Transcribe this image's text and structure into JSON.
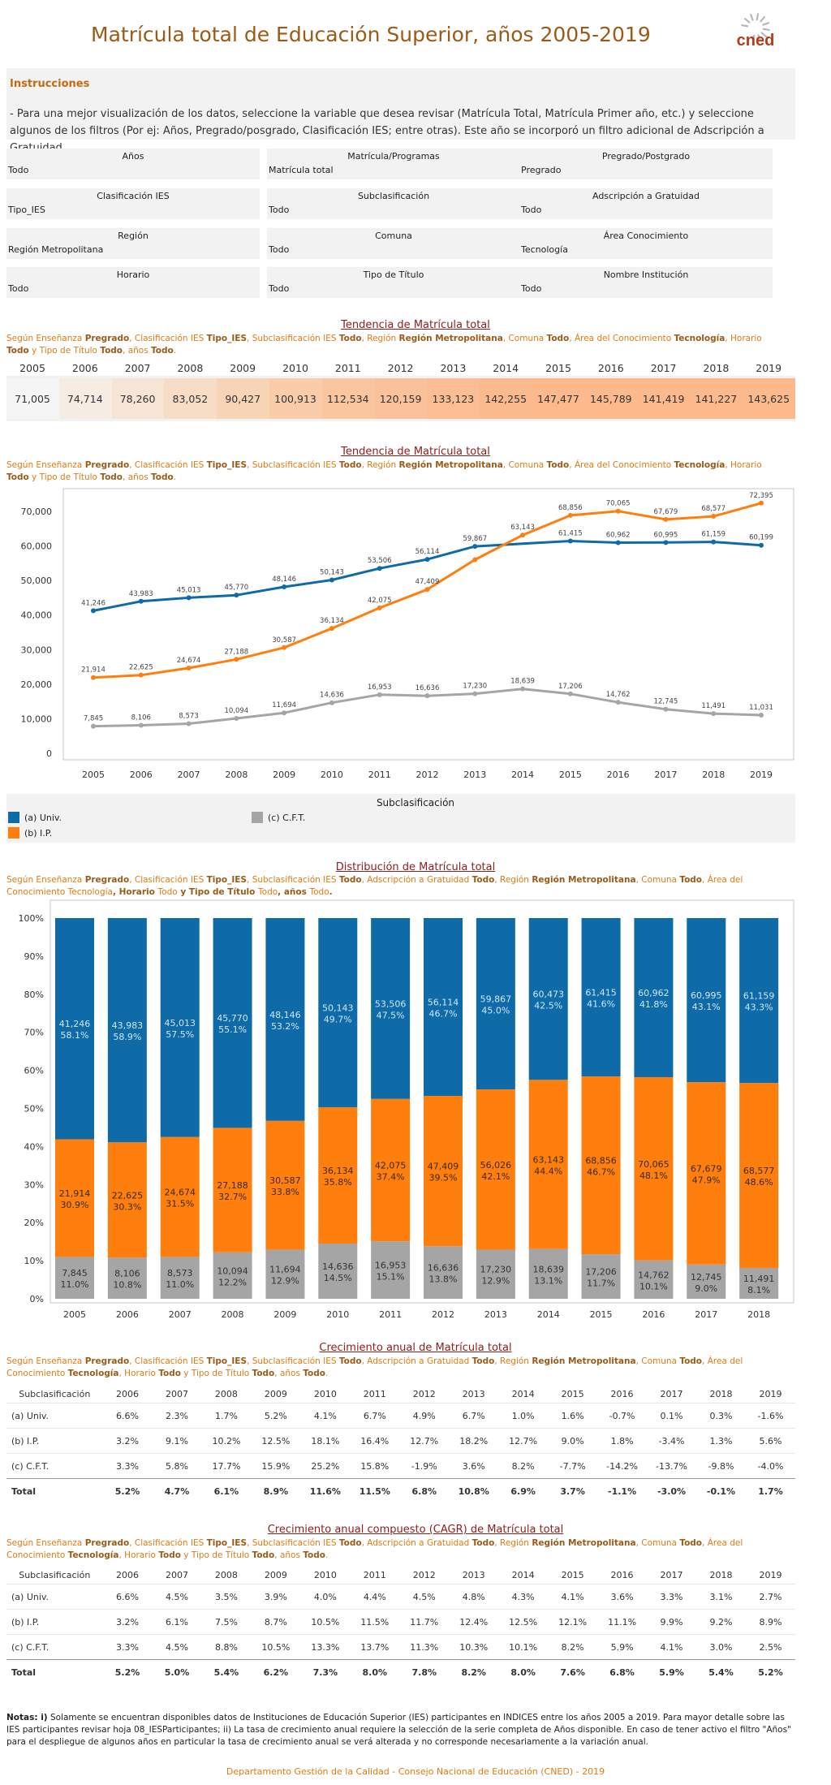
{
  "title": "Matrícula total de Educación Superior, años 2005-2019",
  "logo_text": "cned",
  "colors": {
    "accent": "#9c5a17",
    "orange": "#e07b12",
    "univ": "#0f6ba8",
    "ip": "#ff7f0e",
    "cft": "#a5a5a5"
  },
  "instructions": {
    "heading": "Instrucciones",
    "text": "- Para una mejor visualización de los datos, seleccione la variable que desea revisar (Matrícula Total, Matrícula Primer año, etc.) y seleccione algunos de los filtros (Por ej: Años, Pregrado/posgrado, Clasificación IES; entre otras). Este año se incorporó un filtro adicional de Adscripción a Gratuidad. .."
  },
  "filters": [
    {
      "label": "Años",
      "value": "Todo"
    },
    {
      "label": "Matrícula/Programas",
      "value": "Matrícula total"
    },
    {
      "label": "Pregrado/Postgrado",
      "value": "Pregrado"
    },
    {
      "label": "Clasificación IES",
      "value": "Tipo_IES"
    },
    {
      "label": "Subclasificación",
      "value": "Todo"
    },
    {
      "label": "Adscripción a Gratuidad",
      "value": "Todo"
    },
    {
      "label": "Región",
      "value": "Región Metropolitana"
    },
    {
      "label": "Comuna",
      "value": "Todo"
    },
    {
      "label": "Área Conocimiento",
      "value": "Tecnología"
    },
    {
      "label": "Horario",
      "value": "Todo"
    },
    {
      "label": "Tipo de Título",
      "value": "Todo"
    },
    {
      "label": "Nombre Institución",
      "value": "Todo"
    }
  ],
  "sections": {
    "trend_table": {
      "title_a": "Tendencia de ",
      "title_b": "Matrícula total",
      "sub": "Según Enseñanza |Pregrado|, Clasificación IES |Tipo_IES|, Subclasificación IES |Todo|, Región |Región Metropolitana|, Comuna |Todo|, Área del Conocimiento |Tecnología|, Horario |Todo|  y Tipo de Título |Todo|, años |Todo|."
    },
    "trend_line": {
      "title_a": "Tendencia de ",
      "title_b": "Matrícula total",
      "sub": "Según Enseñanza |Pregrado|, Clasificación IES |Tipo_IES|, Subclasificación IES |Todo|, Región |Región Metropolitana|, Comuna |Todo|, Área del Conocimiento |Tecnología|, Horario |Todo|  y Tipo de Título |Todo|, años |Todo|."
    },
    "distribution": {
      "title_a": "Distribución de ",
      "title_b": "Matrícula total",
      "sub": "Según Enseñanza |Pregrado|, Clasificación IES |Tipo_IES|, Subclasificación IES |Todo|, Adscripción a Gratuidad |Todo|, Región |Región Metropolitana|, Comuna |Todo|, Área del Conocimiento Tecnología|, Horario |Todo|  y Tipo de Título |Todo|, años |Todo|."
    },
    "growth": {
      "title_a": "Crecimiento anual de ",
      "title_b": "Matrícula total",
      "sub": "Según Enseñanza |Pregrado|, Clasificación IES |Tipo_IES|, Subclasificación IES |Todo|, Adscripción a Gratuidad |Todo|, Región |Región Metropolitana|, Comuna |Todo|, Área del Conocimiento |Tecnología|, Horario |Todo|  y Tipo de Título |Todo|, años |Todo|."
    },
    "cagr": {
      "title_a": "Crecimiento anual compuesto (CAGR) de ",
      "title_b": "Matrícula total",
      "sub": "Según Enseñanza |Pregrado|, Clasificación IES |Tipo_IES|, Subclasificación IES |Todo|, Adscripción a Gratuidad |Todo|, Región |Región Metropolitana|, Comuna |Todo|, Área del Conocimiento |Tecnología|, Horario |Todo|  y Tipo de Título |Todo|, años |Todo|."
    }
  },
  "legend": {
    "title": "Subclasificación",
    "items": [
      "(a) Univ.",
      "(b) I.P.",
      "(c) C.F.T."
    ]
  },
  "chart_data": [
    {
      "type": "table",
      "categories": [
        "2005",
        "2006",
        "2007",
        "2008",
        "2009",
        "2010",
        "2011",
        "2012",
        "2013",
        "2014",
        "2015",
        "2016",
        "2017",
        "2018",
        "2019"
      ],
      "values": [
        "71,005",
        "74,714",
        "78,260",
        "83,052",
        "90,427",
        "100,913",
        "112,534",
        "120,159",
        "133,123",
        "142,255",
        "147,477",
        "145,789",
        "141,419",
        "141,227",
        "143,625"
      ]
    },
    {
      "type": "line",
      "x": [
        "2005",
        "2006",
        "2007",
        "2008",
        "2009",
        "2010",
        "2011",
        "2012",
        "2013",
        "2014",
        "2015",
        "2016",
        "2017",
        "2018",
        "2019"
      ],
      "ylim": [
        0,
        75000
      ],
      "yticks": [
        0,
        10000,
        20000,
        30000,
        40000,
        50000,
        60000,
        70000
      ],
      "ytick_labels": [
        "0",
        "10,000",
        "20,000",
        "30,000",
        "40,000",
        "50,000",
        "60,000",
        "70,000"
      ],
      "series": [
        {
          "name": "(a) Univ.",
          "values": [
            41246,
            43983,
            45013,
            45770,
            48146,
            50143,
            53506,
            56114,
            59867,
            null,
            61415,
            60962,
            60995,
            61159,
            60199
          ],
          "labels": [
            "41,246",
            "43,983",
            "45,013",
            "45,770",
            "48,146",
            "50,143",
            "53,506",
            "56,114",
            "59,867",
            "",
            "61,415",
            "60,962",
            "60,995",
            "61,159",
            "60,199"
          ]
        },
        {
          "name": "(b) I.P.",
          "values": [
            21914,
            22625,
            24674,
            27188,
            30587,
            36134,
            42075,
            47409,
            56026,
            63143,
            68856,
            70065,
            67679,
            68577,
            72395
          ],
          "labels": [
            "21,914",
            "22,625",
            "24,674",
            "27,188",
            "30,587",
            "36,134",
            "42,075",
            "47,409",
            "",
            "63,143",
            "68,856",
            "70,065",
            "67,679",
            "68,577",
            "72,395"
          ]
        },
        {
          "name": "(c) C.F.T.",
          "values": [
            7845,
            8106,
            8573,
            10094,
            11694,
            14636,
            16953,
            16636,
            17230,
            18639,
            17206,
            14762,
            12745,
            11491,
            11031
          ],
          "labels": [
            "7,845",
            "8,106",
            "8,573",
            "10,094",
            "11,694",
            "14,636",
            "16,953",
            "16,636",
            "17,230",
            "18,639",
            "17,206",
            "14,762",
            "12,745",
            "11,491",
            "11,031"
          ]
        }
      ]
    },
    {
      "type": "bar",
      "stacked": true,
      "categories": [
        "2005",
        "2006",
        "2007",
        "2008",
        "2009",
        "2010",
        "2011",
        "2012",
        "2013",
        "2014",
        "2015",
        "2016",
        "2017",
        "2018"
      ],
      "ylim": [
        0,
        100
      ],
      "ytick_labels": [
        "0%",
        "10%",
        "20%",
        "30%",
        "40%",
        "50%",
        "60%",
        "70%",
        "80%",
        "90%",
        "100%"
      ],
      "series": [
        {
          "name": "(c) C.F.T.",
          "values": [
            11.0,
            10.8,
            11.0,
            12.2,
            12.9,
            14.5,
            15.1,
            13.8,
            12.9,
            13.1,
            11.7,
            10.1,
            9.0,
            8.1
          ],
          "counts": [
            "7,845",
            "8,106",
            "8,573",
            "10,094",
            "11,694",
            "14,636",
            "16,953",
            "16,636",
            "17,230",
            "18,639",
            "17,206",
            "14,762",
            "12,745",
            "11,491"
          ]
        },
        {
          "name": "(b) I.P.",
          "values": [
            30.9,
            30.3,
            31.5,
            32.7,
            33.8,
            35.8,
            37.4,
            39.5,
            42.1,
            44.4,
            46.7,
            48.1,
            47.9,
            48.6
          ],
          "counts": [
            "21,914",
            "22,625",
            "24,674",
            "27,188",
            "30,587",
            "36,134",
            "42,075",
            "47,409",
            "56,026",
            "63,143",
            "68,856",
            "70,065",
            "67,679",
            "68,577"
          ]
        },
        {
          "name": "(a) Univ.",
          "values": [
            58.1,
            58.9,
            57.5,
            55.1,
            53.2,
            49.7,
            47.5,
            46.7,
            45.0,
            42.5,
            41.6,
            41.8,
            43.1,
            43.3
          ],
          "counts": [
            "41,246",
            "43,983",
            "45,013",
            "45,770",
            "48,146",
            "50,143",
            "53,506",
            "56,114",
            "59,867",
            "60,473",
            "61,415",
            "60,962",
            "60,995",
            "61,159"
          ]
        }
      ]
    },
    {
      "type": "table",
      "header": [
        "Subclasificación",
        "2006",
        "2007",
        "2008",
        "2009",
        "2010",
        "2011",
        "2012",
        "2013",
        "2014",
        "2015",
        "2016",
        "2017",
        "2018",
        "2019"
      ],
      "rows": [
        [
          "(a) Univ.",
          "6.6%",
          "2.3%",
          "1.7%",
          "5.2%",
          "4.1%",
          "6.7%",
          "4.9%",
          "6.7%",
          "1.0%",
          "1.6%",
          "-0.7%",
          "0.1%",
          "0.3%",
          "-1.6%"
        ],
        [
          "(b) I.P.",
          "3.2%",
          "9.1%",
          "10.2%",
          "12.5%",
          "18.1%",
          "16.4%",
          "12.7%",
          "18.2%",
          "12.7%",
          "9.0%",
          "1.8%",
          "-3.4%",
          "1.3%",
          "5.6%"
        ],
        [
          "(c) C.F.T.",
          "3.3%",
          "5.8%",
          "17.7%",
          "15.9%",
          "25.2%",
          "15.8%",
          "-1.9%",
          "3.6%",
          "8.2%",
          "-7.7%",
          "-14.2%",
          "-13.7%",
          "-9.8%",
          "-4.0%"
        ],
        [
          "Total",
          "5.2%",
          "4.7%",
          "6.1%",
          "8.9%",
          "11.6%",
          "11.5%",
          "6.8%",
          "10.8%",
          "6.9%",
          "3.7%",
          "-1.1%",
          "-3.0%",
          "-0.1%",
          "1.7%"
        ]
      ]
    },
    {
      "type": "table",
      "header": [
        "Subclasificación",
        "2006",
        "2007",
        "2008",
        "2009",
        "2010",
        "2011",
        "2012",
        "2013",
        "2014",
        "2015",
        "2016",
        "2017",
        "2018",
        "2019"
      ],
      "rows": [
        [
          "(a) Univ.",
          "6.6%",
          "4.5%",
          "3.5%",
          "3.9%",
          "4.0%",
          "4.4%",
          "4.5%",
          "4.8%",
          "4.3%",
          "4.1%",
          "3.6%",
          "3.3%",
          "3.1%",
          "2.7%"
        ],
        [
          "(b) I.P.",
          "3.2%",
          "6.1%",
          "7.5%",
          "8.7%",
          "10.5%",
          "11.5%",
          "11.7%",
          "12.4%",
          "12.5%",
          "12.1%",
          "11.1%",
          "9.9%",
          "9.2%",
          "8.9%"
        ],
        [
          "(c) C.F.T.",
          "3.3%",
          "4.5%",
          "8.8%",
          "10.5%",
          "13.3%",
          "13.7%",
          "11.3%",
          "10.3%",
          "10.1%",
          "8.2%",
          "5.9%",
          "4.1%",
          "3.0%",
          "2.5%"
        ],
        [
          "Total",
          "5.2%",
          "5.0%",
          "5.4%",
          "6.2%",
          "7.3%",
          "8.0%",
          "7.8%",
          "8.2%",
          "8.0%",
          "7.6%",
          "6.8%",
          "5.9%",
          "5.4%",
          "5.2%"
        ]
      ]
    }
  ],
  "notes": {
    "label": "Notas: i)",
    "text": " Solamente se encuentran disponibles datos de Instituciones de Educación Superior (IES) participantes en INDICES entre los años 2005 a 2019. Para mayor detalle sobre las IES participantes revisar hoja 08_IESParticipantes; ii) La tasa de crecimiento anual requiere la selección de la serie completa de Años disponible. En caso de tener activo el filtro \"Años\" para el despliegue de algunos años en particular la tasa de crecimiento anual se verá alterada y no corresponde necesariamente a la variación anual."
  },
  "footer": "Departamento Gestión de la Calidad - Consejo Nacional de Educación (CNED) - 2019"
}
